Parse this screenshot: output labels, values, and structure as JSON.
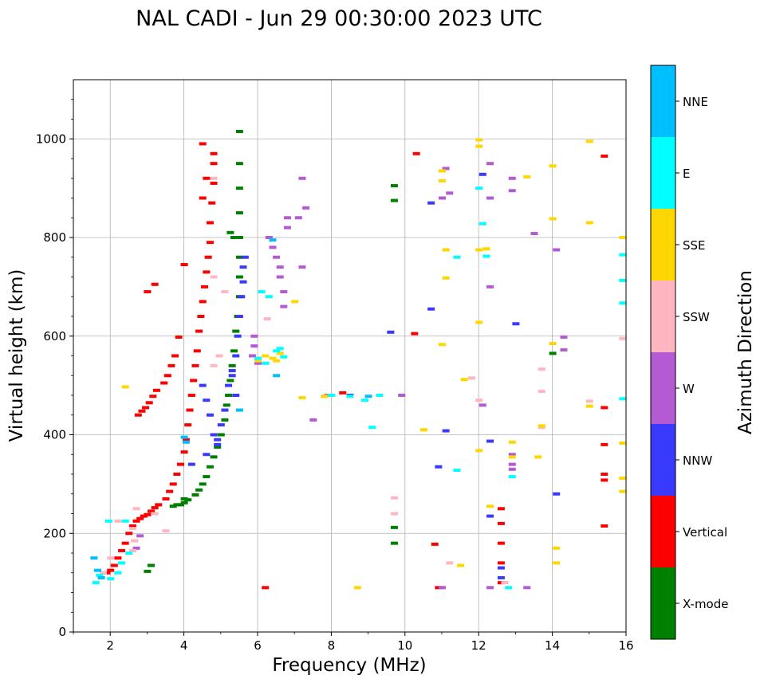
{
  "chart_data": {
    "type": "scatter",
    "title": "NAL CADI - Jun 29 00:30:00 2023 UTC",
    "xlabel": "Frequency (MHz)",
    "ylabel": "Virtual height (km)",
    "xlim": [
      1,
      16
    ],
    "ylim": [
      0,
      1120
    ],
    "xticks": [
      2,
      4,
      6,
      8,
      10,
      12,
      14,
      16
    ],
    "yticks": [
      0,
      200,
      400,
      600,
      800,
      1000
    ],
    "grid": true,
    "colorbar": {
      "label": "Azimuth Direction",
      "position": "right",
      "categories": [
        {
          "name": "X-mode",
          "color": "#008000"
        },
        {
          "name": "Vertical",
          "color": "#ff0000"
        },
        {
          "name": "NNW",
          "color": "#3a3aff"
        },
        {
          "name": "W",
          "color": "#b45ad2"
        },
        {
          "name": "SSW",
          "color": "#ffb6c1"
        },
        {
          "name": "SSE",
          "color": "#ffd700"
        },
        {
          "name": "E",
          "color": "#00ffff"
        },
        {
          "name": "NNE",
          "color": "#00bfff"
        }
      ]
    },
    "series": [
      {
        "name": "X-mode",
        "color": "#008000",
        "points": [
          [
            3.7,
            255
          ],
          [
            3.9,
            258
          ],
          [
            4.0,
            262
          ],
          [
            4.1,
            268
          ],
          [
            4.3,
            278
          ],
          [
            4.4,
            288
          ],
          [
            4.5,
            300
          ],
          [
            4.6,
            315
          ],
          [
            4.7,
            335
          ],
          [
            4.8,
            355
          ],
          [
            4.9,
            375
          ],
          [
            5.0,
            400
          ],
          [
            5.1,
            430
          ],
          [
            5.15,
            460
          ],
          [
            5.2,
            480
          ],
          [
            5.25,
            510
          ],
          [
            5.3,
            540
          ],
          [
            5.35,
            570
          ],
          [
            5.4,
            610
          ],
          [
            5.45,
            640
          ],
          [
            5.5,
            680
          ],
          [
            5.5,
            720
          ],
          [
            5.5,
            760
          ],
          [
            5.5,
            800
          ],
          [
            5.5,
            850
          ],
          [
            5.5,
            900
          ],
          [
            5.5,
            950
          ],
          [
            5.5,
            1015
          ],
          [
            5.25,
            810
          ],
          [
            5.35,
            800
          ],
          [
            4.0,
            270
          ],
          [
            3.8,
            258
          ],
          [
            3.0,
            123
          ],
          [
            3.1,
            135
          ],
          [
            9.7,
            905
          ],
          [
            9.7,
            875
          ],
          [
            9.7,
            212
          ],
          [
            9.7,
            180
          ],
          [
            14.0,
            565
          ]
        ]
      },
      {
        "name": "Vertical",
        "color": "#ff0000",
        "points": [
          [
            1.9,
            120
          ],
          [
            2.0,
            125
          ],
          [
            2.1,
            135
          ],
          [
            2.2,
            150
          ],
          [
            2.3,
            165
          ],
          [
            2.4,
            180
          ],
          [
            2.5,
            200
          ],
          [
            2.6,
            215
          ],
          [
            2.7,
            225
          ],
          [
            2.8,
            230
          ],
          [
            2.9,
            235
          ],
          [
            3.0,
            238
          ],
          [
            3.1,
            245
          ],
          [
            3.2,
            252
          ],
          [
            3.3,
            258
          ],
          [
            3.5,
            270
          ],
          [
            3.6,
            285
          ],
          [
            3.7,
            300
          ],
          [
            3.8,
            320
          ],
          [
            3.9,
            340
          ],
          [
            4.0,
            365
          ],
          [
            4.05,
            390
          ],
          [
            4.1,
            420
          ],
          [
            4.15,
            450
          ],
          [
            4.2,
            480
          ],
          [
            4.25,
            510
          ],
          [
            4.3,
            540
          ],
          [
            4.35,
            570
          ],
          [
            4.4,
            610
          ],
          [
            4.45,
            640
          ],
          [
            4.5,
            670
          ],
          [
            4.55,
            700
          ],
          [
            4.6,
            730
          ],
          [
            4.65,
            760
          ],
          [
            4.7,
            790
          ],
          [
            4.7,
            830
          ],
          [
            4.75,
            870
          ],
          [
            4.8,
            910
          ],
          [
            4.8,
            950
          ],
          [
            4.8,
            970
          ],
          [
            4.5,
            990
          ],
          [
            4.5,
            880
          ],
          [
            4.6,
            920
          ],
          [
            4.0,
            745
          ],
          [
            2.75,
            440
          ],
          [
            2.85,
            448
          ],
          [
            2.95,
            455
          ],
          [
            3.05,
            465
          ],
          [
            3.15,
            478
          ],
          [
            3.25,
            490
          ],
          [
            3.45,
            505
          ],
          [
            3.55,
            520
          ],
          [
            3.65,
            540
          ],
          [
            3.75,
            560
          ],
          [
            3.85,
            598
          ],
          [
            3.2,
            705
          ],
          [
            3.0,
            690
          ],
          [
            6.2,
            90
          ],
          [
            10.3,
            970
          ],
          [
            10.25,
            605
          ],
          [
            10.8,
            178
          ],
          [
            10.9,
            90
          ],
          [
            12.6,
            100
          ],
          [
            12.6,
            140
          ],
          [
            12.6,
            180
          ],
          [
            12.6,
            220
          ],
          [
            12.6,
            250
          ],
          [
            15.4,
            965
          ],
          [
            15.4,
            455
          ],
          [
            15.4,
            380
          ],
          [
            15.4,
            320
          ],
          [
            15.4,
            308
          ],
          [
            15.4,
            215
          ],
          [
            8.3,
            485
          ]
        ]
      },
      {
        "name": "NNW",
        "color": "#3a3aff",
        "points": [
          [
            4.5,
            500
          ],
          [
            4.6,
            470
          ],
          [
            4.7,
            440
          ],
          [
            4.8,
            400
          ],
          [
            4.9,
            380
          ],
          [
            5.0,
            420
          ],
          [
            5.1,
            450
          ],
          [
            5.2,
            500
          ],
          [
            5.3,
            530
          ],
          [
            5.4,
            560
          ],
          [
            5.45,
            600
          ],
          [
            5.5,
            640
          ],
          [
            5.55,
            680
          ],
          [
            5.6,
            710
          ],
          [
            5.6,
            740
          ],
          [
            5.65,
            760
          ],
          [
            5.3,
            520
          ],
          [
            5.4,
            480
          ],
          [
            4.9,
            390
          ],
          [
            4.6,
            360
          ],
          [
            4.2,
            340
          ],
          [
            10.7,
            870
          ],
          [
            10.7,
            655
          ],
          [
            11.1,
            408
          ],
          [
            10.9,
            335
          ],
          [
            12.1,
            928
          ],
          [
            12.3,
            387
          ],
          [
            12.3,
            235
          ],
          [
            12.6,
            110
          ],
          [
            12.6,
            130
          ],
          [
            13.0,
            625
          ],
          [
            14.1,
            280
          ],
          [
            8.5,
            480
          ],
          [
            9.6,
            608
          ]
        ]
      },
      {
        "name": "W",
        "color": "#b45ad2",
        "points": [
          [
            6.3,
            800
          ],
          [
            6.4,
            780
          ],
          [
            6.5,
            760
          ],
          [
            6.6,
            740
          ],
          [
            6.6,
            720
          ],
          [
            6.7,
            690
          ],
          [
            6.7,
            660
          ],
          [
            6.8,
            820
          ],
          [
            6.8,
            840
          ],
          [
            5.9,
            600
          ],
          [
            5.9,
            580
          ],
          [
            5.85,
            560
          ],
          [
            6.0,
            545
          ],
          [
            7.2,
            920
          ],
          [
            7.1,
            840
          ],
          [
            7.3,
            860
          ],
          [
            7.2,
            740
          ],
          [
            7.5,
            430
          ],
          [
            2.7,
            170
          ],
          [
            2.8,
            195
          ],
          [
            11.0,
            880
          ],
          [
            11.2,
            890
          ],
          [
            11.1,
            940
          ],
          [
            12.3,
            880
          ],
          [
            12.3,
            700
          ],
          [
            12.3,
            950
          ],
          [
            12.1,
            460
          ],
          [
            12.9,
            920
          ],
          [
            12.9,
            895
          ],
          [
            12.9,
            360
          ],
          [
            12.9,
            340
          ],
          [
            12.9,
            330
          ],
          [
            13.5,
            808
          ],
          [
            14.1,
            775
          ],
          [
            14.3,
            598
          ],
          [
            14.3,
            572
          ],
          [
            13.3,
            90
          ],
          [
            12.3,
            90
          ],
          [
            11.0,
            90
          ],
          [
            9.9,
            480
          ],
          [
            7.9,
            480
          ]
        ]
      },
      {
        "name": "SSW",
        "color": "#ffb6c1",
        "points": [
          [
            2.6,
            165
          ],
          [
            2.65,
            185
          ],
          [
            2.6,
            210
          ],
          [
            2.7,
            250
          ],
          [
            3.2,
            240
          ],
          [
            3.5,
            205
          ],
          [
            2.2,
            225
          ],
          [
            2.0,
            150
          ],
          [
            1.8,
            120
          ],
          [
            4.8,
            540
          ],
          [
            4.95,
            560
          ],
          [
            4.8,
            720
          ],
          [
            5.1,
            690
          ],
          [
            6.25,
            635
          ],
          [
            4.8,
            920
          ],
          [
            9.7,
            272
          ],
          [
            9.7,
            240
          ],
          [
            11.2,
            140
          ],
          [
            11.8,
            515
          ],
          [
            12.0,
            470
          ],
          [
            12.7,
            100
          ],
          [
            13.7,
            533
          ],
          [
            13.7,
            488
          ],
          [
            13.7,
            415
          ],
          [
            15.0,
            468
          ],
          [
            15.9,
            595
          ]
        ]
      },
      {
        "name": "SSE",
        "color": "#ffd700",
        "points": [
          [
            6.2,
            560
          ],
          [
            6.4,
            555
          ],
          [
            6.6,
            565
          ],
          [
            6.5,
            550
          ],
          [
            6.0,
            550
          ],
          [
            7.0,
            670
          ],
          [
            7.2,
            475
          ],
          [
            7.8,
            478
          ],
          [
            8.0,
            480
          ],
          [
            8.7,
            90
          ],
          [
            10.5,
            410
          ],
          [
            11.0,
            935
          ],
          [
            11.0,
            915
          ],
          [
            11.0,
            583
          ],
          [
            11.1,
            775
          ],
          [
            11.1,
            718
          ],
          [
            11.5,
            135
          ],
          [
            11.6,
            512
          ],
          [
            12.0,
            998
          ],
          [
            12.0,
            985
          ],
          [
            12.0,
            775
          ],
          [
            12.0,
            628
          ],
          [
            12.2,
            777
          ],
          [
            12.0,
            368
          ],
          [
            12.3,
            255
          ],
          [
            12.9,
            385
          ],
          [
            12.9,
            355
          ],
          [
            13.3,
            923
          ],
          [
            13.6,
            355
          ],
          [
            13.7,
            418
          ],
          [
            14.0,
            945
          ],
          [
            14.0,
            838
          ],
          [
            14.0,
            585
          ],
          [
            14.1,
            170
          ],
          [
            14.1,
            140
          ],
          [
            15.0,
            995
          ],
          [
            15.0,
            830
          ],
          [
            15.0,
            458
          ],
          [
            15.9,
            800
          ],
          [
            15.9,
            383
          ],
          [
            15.9,
            312
          ],
          [
            15.9,
            285
          ],
          [
            2.4,
            497
          ]
        ]
      },
      {
        "name": "E",
        "color": "#00ffff",
        "points": [
          [
            1.6,
            100
          ],
          [
            1.7,
            115
          ],
          [
            2.0,
            108
          ],
          [
            2.2,
            120
          ],
          [
            2.3,
            140
          ],
          [
            2.5,
            160
          ],
          [
            2.4,
            225
          ],
          [
            1.95,
            225
          ],
          [
            6.0,
            555
          ],
          [
            6.2,
            545
          ],
          [
            6.5,
            570
          ],
          [
            6.6,
            575
          ],
          [
            6.7,
            558
          ],
          [
            6.3,
            680
          ],
          [
            6.1,
            690
          ],
          [
            8.0,
            480
          ],
          [
            8.5,
            478
          ],
          [
            8.9,
            470
          ],
          [
            9.1,
            415
          ],
          [
            9.3,
            480
          ],
          [
            11.4,
            328
          ],
          [
            11.4,
            760
          ],
          [
            12.2,
            762
          ],
          [
            12.1,
            828
          ],
          [
            12.0,
            900
          ],
          [
            12.9,
            315
          ],
          [
            12.8,
            90
          ],
          [
            15.9,
            765
          ],
          [
            15.9,
            713
          ],
          [
            15.9,
            667
          ],
          [
            15.9,
            473
          ]
        ]
      },
      {
        "name": "NNE",
        "color": "#00bfff",
        "points": [
          [
            1.65,
            125
          ],
          [
            1.75,
            110
          ],
          [
            1.55,
            150
          ],
          [
            4.0,
            395
          ],
          [
            4.05,
            385
          ],
          [
            5.5,
            450
          ],
          [
            6.4,
            795
          ],
          [
            6.5,
            520
          ],
          [
            9.0,
            478
          ]
        ]
      }
    ]
  }
}
